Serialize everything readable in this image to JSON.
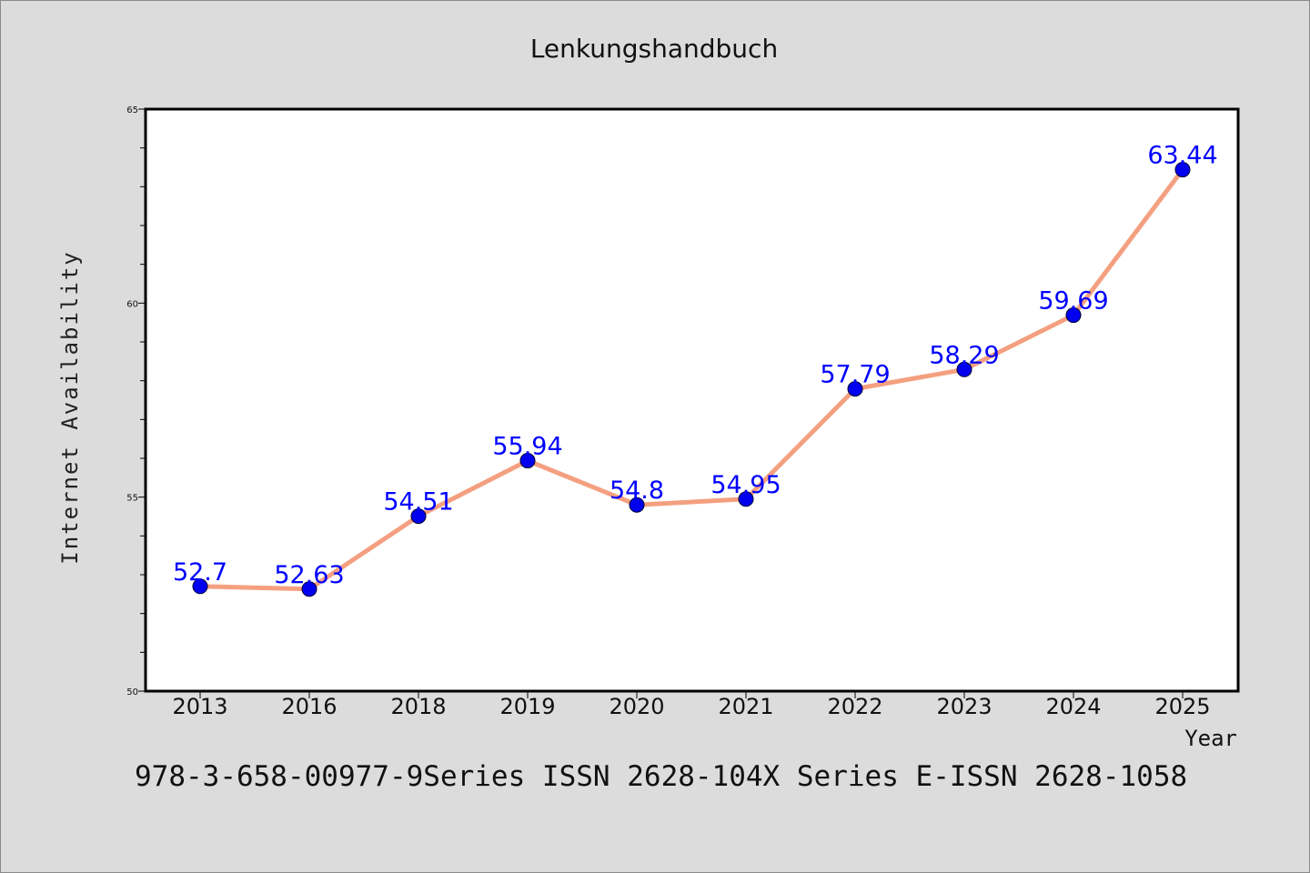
{
  "chart_data": {
    "type": "line",
    "title": "Lenkungshandbuch",
    "xlabel": "Year",
    "ylabel": "Internet Availability",
    "categories": [
      "2013",
      "2016",
      "2018",
      "2019",
      "2020",
      "2021",
      "2022",
      "2023",
      "2024",
      "2025"
    ],
    "series": [
      {
        "values": [
          52.7,
          52.63,
          54.51,
          55.94,
          54.8,
          54.95,
          57.79,
          58.29,
          59.69,
          63.44
        ],
        "data_labels": [
          "52.7",
          "52.63",
          "54.51",
          "55.94",
          "54.8",
          "54.95",
          "57.79",
          "58.29",
          "59.69",
          "63.44"
        ]
      }
    ],
    "ylim": [
      50,
      65
    ],
    "yticks": [
      "50",
      "55",
      "60",
      "65"
    ],
    "grid": false,
    "legend": "none",
    "colors": {
      "line": "#f4a080",
      "marker": "#0000ee",
      "data_label": "#0000ff",
      "background": "#dcdcdc",
      "plot_background": "#ffffff"
    }
  },
  "footer": "978-3-658-00977-9Series ISSN 2628-104X Series E-ISSN 2628-1058"
}
